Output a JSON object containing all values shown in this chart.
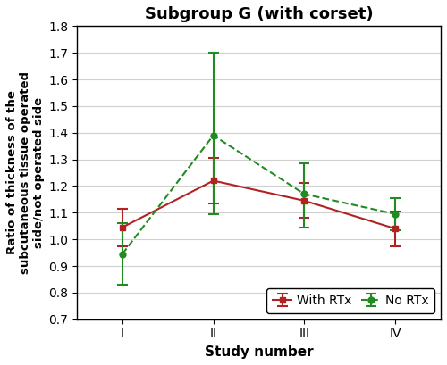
{
  "title": "Subgroup G (with corset)",
  "xlabel": "Study number",
  "ylabel": "Ratio of thickness of the\nsubcutaneous tissue operated\nside/not operated side",
  "x_labels": [
    "I",
    "II",
    "III",
    "IV"
  ],
  "x_positions": [
    1,
    2,
    3,
    4
  ],
  "with_rtx": {
    "y": [
      1.045,
      1.22,
      1.145,
      1.04
    ],
    "yerr_low": [
      0.07,
      0.085,
      0.065,
      0.065
    ],
    "yerr_high": [
      0.07,
      0.085,
      0.065,
      0.065
    ],
    "color": "#b22222",
    "label": "With RTx",
    "linestyle": "-",
    "marker": "s"
  },
  "no_rtx": {
    "y": [
      0.945,
      1.39,
      1.17,
      1.095
    ],
    "yerr_low": [
      0.115,
      0.295,
      0.125,
      0.06
    ],
    "yerr_high": [
      0.115,
      0.31,
      0.115,
      0.06
    ],
    "color": "#228B22",
    "label": "No RTx",
    "linestyle": "--",
    "marker": "o"
  },
  "ylim": [
    0.7,
    1.8
  ],
  "yticks": [
    0.7,
    0.8,
    0.9,
    1.0,
    1.1,
    1.2,
    1.3,
    1.4,
    1.5,
    1.6,
    1.7,
    1.8
  ],
  "background_color": "#ffffff",
  "grid_color": "#d0d0d0",
  "title_fontsize": 13,
  "axis_label_fontsize": 11,
  "tick_fontsize": 10,
  "legend_fontsize": 10
}
